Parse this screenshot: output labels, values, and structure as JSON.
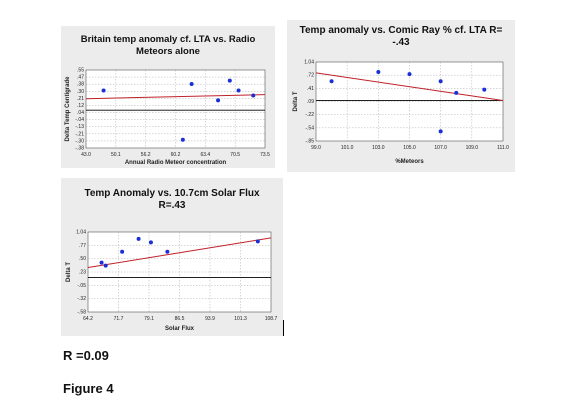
{
  "chart_data": [
    {
      "type": "scatter",
      "title_lines": [
        "Britain temp anomaly cf. LTA vs. Radio",
        "Meteors alone"
      ],
      "xlabel": "Annual Radio Meteor concentration",
      "ylabel": "Delta Temp Centigrade",
      "xlim": [
        43.0,
        73.5
      ],
      "ylim": [
        -0.4,
        0.55
      ],
      "xticks": [
        "43.0",
        "50.1",
        "56.2",
        "60.2",
        "63.4",
        "70.5",
        "73.5"
      ],
      "yticks": [
        ".55",
        ".47",
        ".38",
        ".30",
        ".21",
        ".12",
        ".04",
        "-.04",
        "-.13",
        "-.21",
        "-.30",
        "-.38"
      ],
      "series": [
        {
          "x": [
            46.0,
            61.0,
            65.5,
            67.5,
            69.0,
            71.5,
            59.5
          ],
          "y": [
            0.3,
            0.38,
            0.18,
            0.42,
            0.3,
            0.24,
            -0.3
          ]
        }
      ],
      "trend": {
        "x": [
          43.0,
          73.5
        ],
        "y": [
          0.2,
          0.25
        ]
      },
      "zero_line": 0.06,
      "grid": true
    },
    {
      "type": "scatter",
      "title_lines": [
        "Temp anomaly vs. Comic Ray % cf. LTA  R=",
        "-.43"
      ],
      "xlabel": "%Meteors",
      "ylabel": "Delta T",
      "xlim": [
        99.0,
        111.0
      ],
      "ylim": [
        -0.85,
        1.04
      ],
      "xticks": [
        "99.0",
        "101.0",
        "103.0",
        "105.0",
        "107.0",
        "109.0",
        "111.0"
      ],
      "yticks": [
        "1.04",
        ".72",
        ".41",
        ".09",
        "-.22",
        "-.54",
        "-.85"
      ],
      "series": [
        {
          "x": [
            100.0,
            103.0,
            105.0,
            107.0,
            108.0,
            109.8,
            107.0
          ],
          "y": [
            0.58,
            0.8,
            0.75,
            0.58,
            0.3,
            0.38,
            -0.62
          ]
        }
      ],
      "trend": {
        "x": [
          99.0,
          111.0
        ],
        "y": [
          0.78,
          0.12
        ]
      },
      "zero_line": 0.12,
      "grid": true
    },
    {
      "type": "scatter",
      "title_lines": [
        "Temp Anomaly  vs. 10.7cm Solar Flux",
        "R=.43"
      ],
      "xlabel": "Solar Flux",
      "ylabel": "Delta T",
      "xlim": [
        64.2,
        108.7
      ],
      "ylim": [
        -0.58,
        1.04
      ],
      "xticks": [
        "64.2",
        "71.7",
        "79.1",
        "86.5",
        "93.9",
        "101.3",
        "108.7"
      ],
      "yticks": [
        "1.04",
        ".77",
        ".50",
        ".23",
        "-.05",
        "-.32",
        "-.58"
      ],
      "series": [
        {
          "x": [
            67.5,
            68.5,
            72.5,
            76.5,
            79.5,
            83.5,
            105.5
          ],
          "y": [
            0.42,
            0.36,
            0.64,
            0.9,
            0.83,
            0.64,
            0.85
          ]
        }
      ],
      "trend": {
        "x": [
          64.2,
          108.7
        ],
        "y": [
          0.32,
          0.92
        ]
      },
      "zero_line": 0.12,
      "grid": true
    }
  ],
  "caption_r": "R =0.09",
  "caption_figure": "Figure 4"
}
